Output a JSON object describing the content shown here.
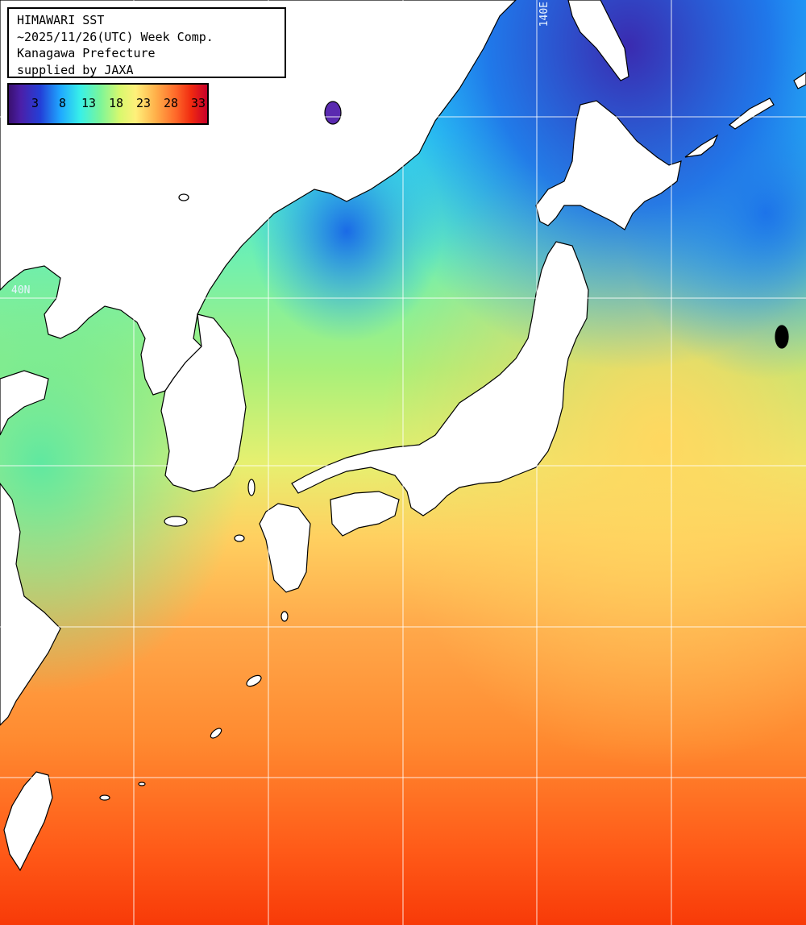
{
  "header": {
    "line1": "HIMAWARI SST",
    "line2": "~2025/11/26(UTC) Week Comp.",
    "line3": "Kanagawa Prefecture",
    "line4": "supplied by JAXA"
  },
  "colorbar": {
    "ticks": [
      "3",
      "8",
      "13",
      "18",
      "23",
      "28",
      "33"
    ]
  },
  "grid_labels": {
    "lon": "140E",
    "lat": "40N"
  },
  "colors": {
    "land": "#ffffff",
    "coast": "#000000",
    "grid": "#ffffff"
  }
}
